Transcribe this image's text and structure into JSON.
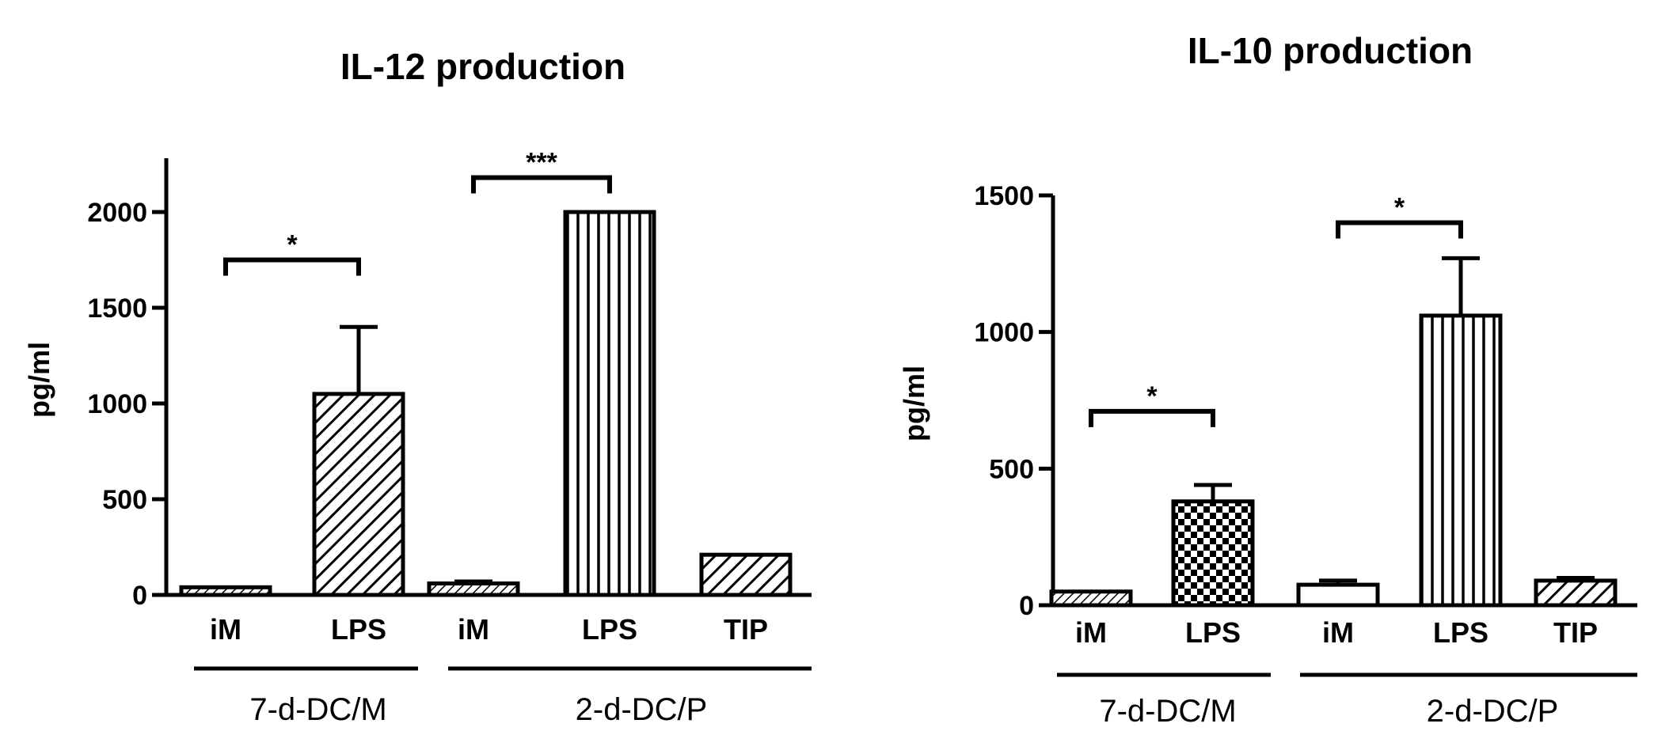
{
  "chart_data": [
    {
      "type": "bar",
      "title": "IL-12 production",
      "ylabel": "pg/ml",
      "ylim": [
        0,
        2250
      ],
      "yticks": [
        0,
        500,
        1000,
        1500,
        2000
      ],
      "categories": [
        "iM",
        "LPS",
        "iM",
        "LPS",
        "TIP"
      ],
      "groups": [
        {
          "label": "7-d-DC/M",
          "members": [
            0,
            1
          ]
        },
        {
          "label": "2-d-DC/P",
          "members": [
            2,
            3,
            4
          ]
        }
      ],
      "values": [
        40,
        1050,
        60,
        2000,
        210
      ],
      "errors": [
        0,
        350,
        10,
        0,
        0
      ],
      "patterns": [
        "hatch-fine",
        "hatch-diag",
        "hatch-fine",
        "vertical",
        "hatch-diag"
      ],
      "significance": [
        {
          "from": 0,
          "to": 1,
          "label": "*",
          "level": 1750
        },
        {
          "from": 2,
          "to": 3,
          "label": "***",
          "level": 2180
        }
      ]
    },
    {
      "type": "bar",
      "title": "IL-10 production",
      "ylabel": "pg/ml",
      "ylim": [
        0,
        1500
      ],
      "yticks": [
        0,
        500,
        1000,
        1500
      ],
      "categories": [
        "iM",
        "LPS",
        "iM",
        "LPS",
        "TIP"
      ],
      "groups": [
        {
          "label": "7-d-DC/M",
          "members": [
            0,
            1
          ]
        },
        {
          "label": "2-d-DC/P",
          "members": [
            2,
            3,
            4
          ]
        }
      ],
      "values": [
        50,
        380,
        75,
        1060,
        90
      ],
      "errors": [
        0,
        60,
        15,
        210,
        10
      ],
      "patterns": [
        "hatch-fine",
        "checker",
        "white",
        "vertical",
        "hatch-diag"
      ],
      "significance": [
        {
          "from": 0,
          "to": 1,
          "label": "*",
          "level": 710
        },
        {
          "from": 2,
          "to": 3,
          "label": "*",
          "level": 1400
        }
      ]
    }
  ]
}
